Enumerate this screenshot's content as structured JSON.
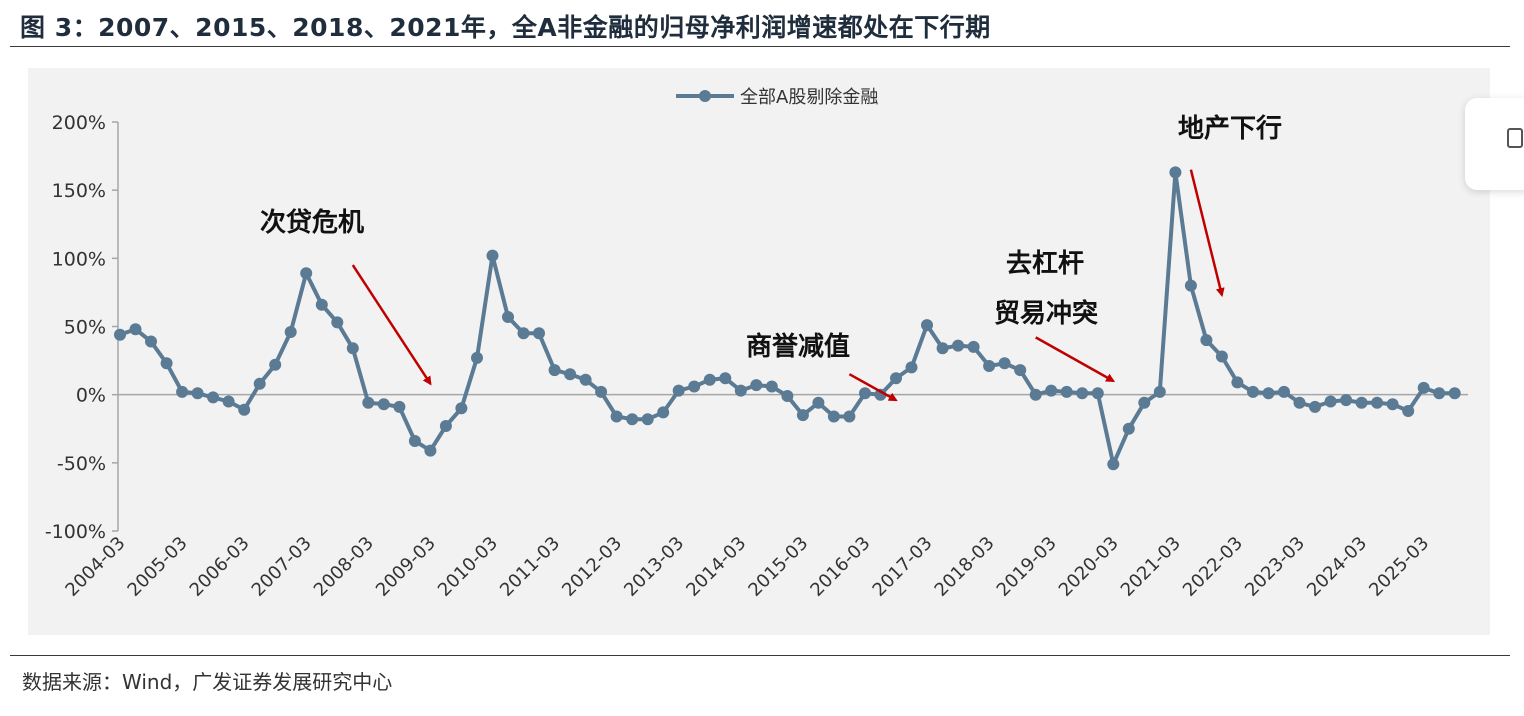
{
  "figure_title": "图  3：2007、2015、2018、2021年，全A非金融的归母净利润增速都处在下行期",
  "source": "数据来源：Wind，广发证券发展研究中心",
  "chart_data": {
    "type": "line",
    "title": "",
    "xlabel": "",
    "ylabel": "",
    "ylim": [
      -100,
      200
    ],
    "yticks": [
      200,
      150,
      100,
      50,
      0,
      -50,
      -100
    ],
    "ytick_labels": [
      "200%",
      "150%",
      "100%",
      "50%",
      "0%",
      "-50%",
      "-100%"
    ],
    "xtick_labels": [
      "2004-03",
      "2005-03",
      "2006-03",
      "2007-03",
      "2008-03",
      "2009-03",
      "2010-03",
      "2011-03",
      "2012-03",
      "2013-03",
      "2014-03",
      "2015-03",
      "2016-03",
      "2017-03",
      "2018-03",
      "2019-03",
      "2020-03",
      "2021-03",
      "2022-03",
      "2023-03",
      "2024-03",
      "2025-03"
    ],
    "legend_position": "top-center",
    "grid": false,
    "series": [
      {
        "name": "全部A股剔除金融",
        "color": "#5b7a94",
        "values": [
          44,
          48,
          39,
          23,
          2,
          1,
          -2,
          -5,
          -11,
          8,
          22,
          46,
          89,
          66,
          53,
          34,
          -6,
          -7,
          -9,
          -34,
          -41,
          -23,
          -10,
          27,
          102,
          57,
          45,
          45,
          18,
          15,
          11,
          2,
          -16,
          -18,
          -18,
          -13,
          3,
          6,
          11,
          12,
          3,
          7,
          6,
          -1,
          -15,
          -6,
          -16,
          -16,
          1,
          0,
          12,
          20,
          51,
          34,
          36,
          35,
          21,
          23,
          18,
          0,
          3,
          2,
          1,
          1,
          -51,
          -25,
          -6,
          2,
          163,
          80,
          40,
          28,
          9,
          2,
          1,
          2,
          -6,
          -9,
          -5,
          -4,
          -6,
          -6,
          -7,
          -12,
          5,
          1,
          1
        ]
      }
    ],
    "annotations": [
      {
        "text": "次贷危机",
        "arrow_from": [
          "2007-12",
          95
        ],
        "arrow_to": [
          "2009-03",
          8
        ]
      },
      {
        "text": "商誉减值",
        "arrow_from": [
          "2015-12",
          15
        ],
        "arrow_to": [
          "2016-09",
          -4
        ]
      },
      {
        "text": "去杠杆",
        "arrow_from": null,
        "arrow_to": null
      },
      {
        "text": "贸易冲突",
        "arrow_from": [
          "2018-12",
          42
        ],
        "arrow_to": [
          "2020-03",
          10
        ]
      },
      {
        "text": "地产下行",
        "arrow_from": [
          "2021-06",
          165
        ],
        "arrow_to": [
          "2021-12",
          73
        ]
      }
    ]
  }
}
